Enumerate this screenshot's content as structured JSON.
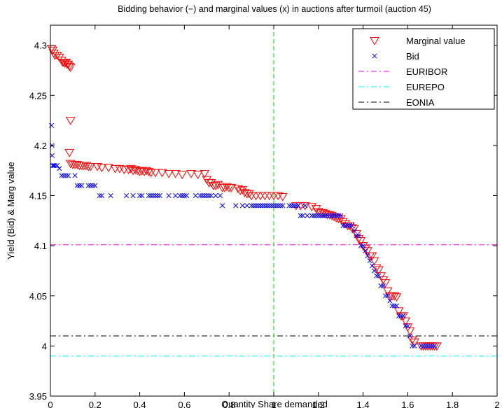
{
  "chart_data": {
    "type": "scatter",
    "title": "Bidding behavior (−) and marginal values (x) in auctions after turmoil (auction 45)",
    "xlabel": "Quantity Share demanded",
    "ylabel": "Yield (Bid) & Marg value",
    "xlim": [
      0,
      2
    ],
    "ylim": [
      3.95,
      4.32
    ],
    "xticks": [
      "0",
      "0.2",
      "0.4",
      "0.6",
      "0.8",
      "1",
      "1.2",
      "1.4",
      "1.6",
      "1.8",
      "2"
    ],
    "yticks": [
      "3.95",
      "4",
      "4.05",
      "4.1",
      "4.15",
      "4.2",
      "4.25",
      "4.3"
    ],
    "grid": false,
    "legend_position": "top-right",
    "series": [
      {
        "name": "Marginal value",
        "marker": "triangle-down",
        "color": "#ff0000",
        "points": [
          [
            0.005,
            4.297
          ],
          [
            0.01,
            4.295
          ],
          [
            0.015,
            4.292
          ],
          [
            0.02,
            4.29
          ],
          [
            0.03,
            4.29
          ],
          [
            0.04,
            4.288
          ],
          [
            0.05,
            4.285
          ],
          [
            0.055,
            4.283
          ],
          [
            0.06,
            4.283
          ],
          [
            0.065,
            4.282
          ],
          [
            0.07,
            4.283
          ],
          [
            0.075,
            4.281
          ],
          [
            0.08,
            4.281
          ],
          [
            0.085,
            4.279
          ],
          [
            0.09,
            4.278
          ],
          [
            0.09,
            4.225
          ],
          [
            0.085,
            4.193
          ],
          [
            0.09,
            4.182
          ],
          [
            0.1,
            4.181
          ],
          [
            0.11,
            4.181
          ],
          [
            0.12,
            4.181
          ],
          [
            0.13,
            4.18
          ],
          [
            0.14,
            4.18
          ],
          [
            0.15,
            4.18
          ],
          [
            0.16,
            4.18
          ],
          [
            0.17,
            4.179
          ],
          [
            0.18,
            4.179
          ],
          [
            0.21,
            4.179
          ],
          [
            0.23,
            4.178
          ],
          [
            0.26,
            4.178
          ],
          [
            0.29,
            4.177
          ],
          [
            0.31,
            4.177
          ],
          [
            0.33,
            4.176
          ],
          [
            0.35,
            4.176
          ],
          [
            0.36,
            4.177
          ],
          [
            0.37,
            4.175
          ],
          [
            0.38,
            4.176
          ],
          [
            0.39,
            4.175
          ],
          [
            0.4,
            4.174
          ],
          [
            0.41,
            4.175
          ],
          [
            0.42,
            4.174
          ],
          [
            0.43,
            4.175
          ],
          [
            0.44,
            4.174
          ],
          [
            0.45,
            4.173
          ],
          [
            0.47,
            4.173
          ],
          [
            0.5,
            4.173
          ],
          [
            0.53,
            4.172
          ],
          [
            0.56,
            4.172
          ],
          [
            0.59,
            4.171
          ],
          [
            0.63,
            4.172
          ],
          [
            0.66,
            4.171
          ],
          [
            0.69,
            4.172
          ],
          [
            0.7,
            4.166
          ],
          [
            0.71,
            4.163
          ],
          [
            0.72,
            4.163
          ],
          [
            0.73,
            4.16
          ],
          [
            0.74,
            4.16
          ],
          [
            0.75,
            4.161
          ],
          [
            0.77,
            4.158
          ],
          [
            0.78,
            4.158
          ],
          [
            0.79,
            4.159
          ],
          [
            0.8,
            4.158
          ],
          [
            0.81,
            4.158
          ],
          [
            0.84,
            4.157
          ],
          [
            0.85,
            4.155
          ],
          [
            0.86,
            4.156
          ],
          [
            0.87,
            4.153
          ],
          [
            0.88,
            4.152
          ],
          [
            0.89,
            4.152
          ],
          [
            0.9,
            4.15
          ],
          [
            0.92,
            4.15
          ],
          [
            0.94,
            4.15
          ],
          [
            0.96,
            4.15
          ],
          [
            0.98,
            4.15
          ],
          [
            1.0,
            4.15
          ],
          [
            1.02,
            4.15
          ],
          [
            1.04,
            4.149
          ],
          [
            1.1,
            4.14
          ],
          [
            1.12,
            4.14
          ],
          [
            1.14,
            4.14
          ],
          [
            1.17,
            4.139
          ],
          [
            1.19,
            4.137
          ],
          [
            1.2,
            4.134
          ],
          [
            1.21,
            4.133
          ],
          [
            1.22,
            4.133
          ],
          [
            1.23,
            4.132
          ],
          [
            1.24,
            4.131
          ],
          [
            1.25,
            4.131
          ],
          [
            1.26,
            4.13
          ],
          [
            1.27,
            4.129
          ],
          [
            1.28,
            4.128
          ],
          [
            1.29,
            4.127
          ],
          [
            1.3,
            4.127
          ],
          [
            1.31,
            4.124
          ],
          [
            1.32,
            4.122
          ],
          [
            1.33,
            4.12
          ],
          [
            1.34,
            4.12
          ],
          [
            1.35,
            4.118
          ],
          [
            1.36,
            4.117
          ],
          [
            1.37,
            4.112
          ],
          [
            1.38,
            4.107
          ],
          [
            1.39,
            4.105
          ],
          [
            1.4,
            4.1
          ],
          [
            1.41,
            4.097
          ],
          [
            1.42,
            4.095
          ],
          [
            1.43,
            4.09
          ],
          [
            1.44,
            4.09
          ],
          [
            1.45,
            4.085
          ],
          [
            1.46,
            4.078
          ],
          [
            1.47,
            4.076
          ],
          [
            1.48,
            4.07
          ],
          [
            1.49,
            4.066
          ],
          [
            1.5,
            4.063
          ],
          [
            1.51,
            4.055
          ],
          [
            1.52,
            4.05
          ],
          [
            1.53,
            4.05
          ],
          [
            1.54,
            4.05
          ],
          [
            1.55,
            4.049
          ],
          [
            1.56,
            4.035
          ],
          [
            1.57,
            4.03
          ],
          [
            1.58,
            4.03
          ],
          [
            1.59,
            4.025
          ],
          [
            1.6,
            4.019
          ],
          [
            1.61,
            4.015
          ],
          [
            1.62,
            4.006
          ],
          [
            1.63,
            4.004
          ],
          [
            1.66,
            4.0
          ],
          [
            1.67,
            4.0
          ],
          [
            1.68,
            4.0
          ],
          [
            1.69,
            4.0
          ],
          [
            1.7,
            4.0
          ],
          [
            1.71,
            4.0
          ],
          [
            1.72,
            4.0
          ],
          [
            1.73,
            4.0
          ]
        ]
      },
      {
        "name": "Bid",
        "marker": "x",
        "color": "#0000ff",
        "points": [
          [
            0.005,
            4.22
          ],
          [
            0.007,
            4.2
          ],
          [
            0.008,
            4.19
          ],
          [
            0.01,
            4.18
          ],
          [
            0.015,
            4.18
          ],
          [
            0.02,
            4.18
          ],
          [
            0.03,
            4.18
          ],
          [
            0.04,
            4.177
          ],
          [
            0.05,
            4.17
          ],
          [
            0.06,
            4.17
          ],
          [
            0.07,
            4.17
          ],
          [
            0.08,
            4.17
          ],
          [
            0.11,
            4.17
          ],
          [
            0.12,
            4.16
          ],
          [
            0.13,
            4.16
          ],
          [
            0.14,
            4.16
          ],
          [
            0.17,
            4.16
          ],
          [
            0.18,
            4.16
          ],
          [
            0.19,
            4.16
          ],
          [
            0.2,
            4.16
          ],
          [
            0.22,
            4.15
          ],
          [
            0.23,
            4.15
          ],
          [
            0.27,
            4.15
          ],
          [
            0.34,
            4.15
          ],
          [
            0.37,
            4.15
          ],
          [
            0.4,
            4.15
          ],
          [
            0.41,
            4.15
          ],
          [
            0.44,
            4.15
          ],
          [
            0.45,
            4.15
          ],
          [
            0.46,
            4.15
          ],
          [
            0.47,
            4.15
          ],
          [
            0.48,
            4.15
          ],
          [
            0.49,
            4.15
          ],
          [
            0.53,
            4.15
          ],
          [
            0.56,
            4.15
          ],
          [
            0.58,
            4.15
          ],
          [
            0.59,
            4.15
          ],
          [
            0.6,
            4.15
          ],
          [
            0.61,
            4.15
          ],
          [
            0.65,
            4.15
          ],
          [
            0.67,
            4.15
          ],
          [
            0.68,
            4.15
          ],
          [
            0.69,
            4.15
          ],
          [
            0.7,
            4.15
          ],
          [
            0.71,
            4.15
          ],
          [
            0.72,
            4.15
          ],
          [
            0.74,
            4.15
          ],
          [
            0.76,
            4.15
          ],
          [
            0.77,
            4.14
          ],
          [
            0.83,
            4.14
          ],
          [
            0.86,
            4.14
          ],
          [
            0.88,
            4.14
          ],
          [
            0.9,
            4.14
          ],
          [
            0.91,
            4.14
          ],
          [
            0.92,
            4.14
          ],
          [
            0.93,
            4.14
          ],
          [
            0.94,
            4.14
          ],
          [
            0.95,
            4.14
          ],
          [
            0.96,
            4.14
          ],
          [
            0.97,
            4.14
          ],
          [
            0.98,
            4.14
          ],
          [
            0.99,
            4.14
          ],
          [
            1.0,
            4.14
          ],
          [
            1.01,
            4.14
          ],
          [
            1.02,
            4.14
          ],
          [
            1.03,
            4.14
          ],
          [
            1.04,
            4.14
          ],
          [
            1.07,
            4.14
          ],
          [
            1.08,
            4.14
          ],
          [
            1.09,
            4.14
          ],
          [
            1.1,
            4.14
          ],
          [
            1.11,
            4.14
          ],
          [
            1.14,
            4.14
          ],
          [
            1.12,
            4.13
          ],
          [
            1.13,
            4.13
          ],
          [
            1.15,
            4.13
          ],
          [
            1.17,
            4.13
          ],
          [
            1.18,
            4.13
          ],
          [
            1.19,
            4.13
          ],
          [
            1.2,
            4.13
          ],
          [
            1.21,
            4.13
          ],
          [
            1.22,
            4.13
          ],
          [
            1.23,
            4.13
          ],
          [
            1.24,
            4.13
          ],
          [
            1.25,
            4.13
          ],
          [
            1.26,
            4.13
          ],
          [
            1.27,
            4.13
          ],
          [
            1.28,
            4.13
          ],
          [
            1.29,
            4.13
          ],
          [
            1.3,
            4.13
          ],
          [
            1.31,
            4.12
          ],
          [
            1.32,
            4.12
          ],
          [
            1.33,
            4.12
          ],
          [
            1.34,
            4.12
          ],
          [
            1.35,
            4.12
          ],
          [
            1.36,
            4.115
          ],
          [
            1.37,
            4.11
          ],
          [
            1.38,
            4.11
          ],
          [
            1.39,
            4.1
          ],
          [
            1.4,
            4.1
          ],
          [
            1.41,
            4.095
          ],
          [
            1.42,
            4.09
          ],
          [
            1.43,
            4.085
          ],
          [
            1.44,
            4.08
          ],
          [
            1.45,
            4.075
          ],
          [
            1.46,
            4.07
          ],
          [
            1.47,
            4.07
          ],
          [
            1.48,
            4.06
          ],
          [
            1.49,
            4.06
          ],
          [
            1.5,
            4.05
          ],
          [
            1.51,
            4.05
          ],
          [
            1.52,
            4.045
          ],
          [
            1.53,
            4.04
          ],
          [
            1.54,
            4.04
          ],
          [
            1.55,
            4.04
          ],
          [
            1.56,
            4.03
          ],
          [
            1.57,
            4.03
          ],
          [
            1.58,
            4.03
          ],
          [
            1.59,
            4.02
          ],
          [
            1.6,
            4.02
          ],
          [
            1.61,
            4.01
          ],
          [
            1.62,
            4.0
          ],
          [
            1.63,
            4.0
          ],
          [
            1.66,
            4.0
          ],
          [
            1.67,
            4.0
          ],
          [
            1.68,
            4.0
          ],
          [
            1.69,
            4.0
          ],
          [
            1.7,
            4.0
          ],
          [
            1.71,
            4.0
          ],
          [
            1.72,
            4.0
          ]
        ]
      }
    ],
    "hlines": [
      {
        "name": "EURIBOR",
        "y": 4.101,
        "color": "#ff00ff",
        "style": "dash-dot"
      },
      {
        "name": "EUREPO",
        "y": 3.99,
        "color": "#00ffff",
        "style": "dash-dot"
      },
      {
        "name": "EONIA",
        "y": 4.01,
        "color": "#000000",
        "style": "dash-dot"
      }
    ],
    "vlines": [
      {
        "x": 1.0,
        "color": "#00cc00",
        "style": "dashed"
      }
    ]
  }
}
